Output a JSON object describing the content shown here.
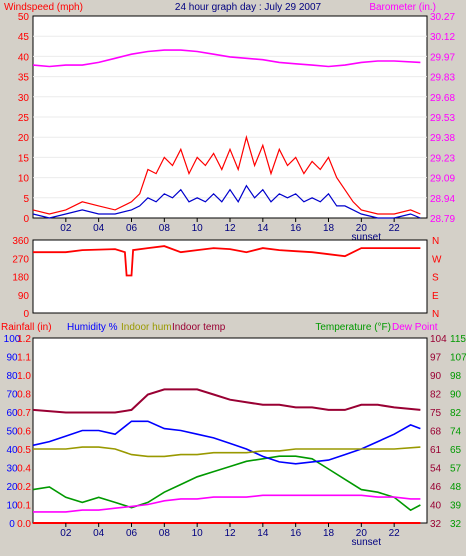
{
  "chart_data": [
    {
      "type": "line",
      "title": "24 hour graph day : July 29 2007",
      "ylabel_left": "Windspeed (mph)",
      "ylabel_right": "Barometer (in.)",
      "ylim_left": [
        0,
        50
      ],
      "left_ticks": [
        "0",
        "5",
        "10",
        "15",
        "20",
        "25",
        "30",
        "35",
        "40",
        "45",
        "50"
      ],
      "right_ticks": [
        "28.79",
        "28.94",
        "29.09",
        "29.23",
        "29.38",
        "29.53",
        "29.68",
        "29.83",
        "29.97",
        "30.12",
        "30.27"
      ],
      "x_ticks": [
        "02",
        "04",
        "06",
        "08",
        "10",
        "12",
        "14",
        "16",
        "18",
        "20",
        "22"
      ],
      "annotation": "sunset",
      "colors": {
        "wind_gust": "#ff0000",
        "wind_avg": "#0000cc",
        "barometer": "#ff00ff",
        "left_axis": "#ff0000",
        "right_axis": "#ff00ff"
      },
      "series": [
        {
          "key": "barometer",
          "x": [
            0,
            1,
            2,
            3,
            4,
            5,
            6,
            7,
            8,
            9,
            10,
            11,
            12,
            13,
            14,
            15,
            16,
            17,
            18,
            19,
            20,
            21,
            22,
            23.6
          ],
          "values": [
            29.91,
            29.9,
            29.91,
            29.91,
            29.93,
            29.96,
            29.99,
            30.01,
            30.02,
            30.02,
            30.01,
            29.99,
            29.97,
            29.96,
            29.95,
            29.93,
            29.92,
            29.91,
            29.9,
            29.91,
            29.93,
            29.94,
            29.94,
            29.93
          ]
        },
        {
          "key": "wind_gust",
          "x": [
            0,
            1,
            2,
            3,
            4,
            5,
            6,
            6.5,
            7,
            7.5,
            8,
            8.5,
            9,
            9.5,
            10,
            10.5,
            11,
            11.5,
            12,
            12.5,
            13,
            13.5,
            14,
            14.5,
            15,
            15.5,
            16,
            16.5,
            17,
            17.5,
            18,
            18.5,
            19,
            19.5,
            20,
            21,
            22,
            23,
            23.6
          ],
          "values": [
            2,
            1,
            2,
            4,
            3,
            2,
            4,
            6,
            12,
            11,
            15,
            13,
            17,
            11,
            15,
            13,
            16,
            12,
            17,
            12,
            20,
            13,
            18,
            11,
            17,
            13,
            15,
            11,
            14,
            12,
            15,
            10,
            7,
            4,
            2,
            1,
            1,
            2,
            1
          ]
        },
        {
          "key": "wind_avg",
          "x": [
            0,
            1,
            2,
            3,
            4,
            5,
            6,
            6.5,
            7,
            7.5,
            8,
            8.5,
            9,
            9.5,
            10,
            10.5,
            11,
            11.5,
            12,
            12.5,
            13,
            13.5,
            14,
            14.5,
            15,
            15.5,
            16,
            16.5,
            17,
            17.5,
            18,
            18.5,
            19,
            19.5,
            20,
            21,
            22,
            23,
            23.6
          ],
          "values": [
            1,
            0,
            1,
            2,
            1,
            1,
            2,
            3,
            5,
            4,
            6,
            5,
            7,
            4,
            5,
            4,
            6,
            4,
            7,
            4,
            8,
            5,
            7,
            4,
            6,
            5,
            6,
            4,
            5,
            4,
            6,
            3,
            3,
            2,
            1,
            0,
            0,
            1,
            0
          ]
        }
      ]
    },
    {
      "type": "line",
      "ylim": [
        0,
        360
      ],
      "left_ticks": [
        "0",
        "90",
        "180",
        "270",
        "360"
      ],
      "right_ticks": [
        "N",
        "E",
        "S",
        "W",
        "N"
      ],
      "x_ticks": [
        "02",
        "04",
        "06",
        "08",
        "10",
        "12",
        "14",
        "16",
        "18",
        "20",
        "22"
      ],
      "colors": {
        "direction": "#ff0000"
      },
      "series": [
        {
          "key": "wind_direction",
          "x": [
            0,
            2,
            3,
            5,
            5.6,
            5.7,
            6,
            6.1,
            7,
            8,
            9,
            10,
            11,
            12,
            13,
            14,
            15,
            16,
            17,
            18,
            19,
            20,
            21,
            22,
            23.6
          ],
          "values": [
            300,
            300,
            310,
            315,
            300,
            185,
            185,
            310,
            320,
            330,
            300,
            310,
            320,
            315,
            300,
            320,
            310,
            305,
            300,
            290,
            280,
            320,
            320,
            320,
            320
          ]
        }
      ]
    },
    {
      "type": "line",
      "ylabel_rain": "Rainfall (in)",
      "ylabel_humidity": "Humidity %",
      "ylabel_indoor_hum": "Indoor hum",
      "ylabel_indoor_temp": "Indoor temp",
      "ylabel_temperature": "Temperature (°F)",
      "ylabel_dewpoint": "Dew Point",
      "ylim_humidity": [
        0,
        100
      ],
      "humidity_ticks": [
        "0",
        "10",
        "20",
        "30",
        "40",
        "50",
        "60",
        "70",
        "80",
        "90",
        "100"
      ],
      "rain_ticks": [
        "0.0",
        "0.1",
        "0.2",
        "0.4",
        "0.5",
        "0.6",
        "0.7",
        "0.8",
        "1.0",
        "1.1",
        "1.2"
      ],
      "temp_ticks_a": [
        "32",
        "40",
        "46",
        "54",
        "61",
        "68",
        "75",
        "82",
        "90",
        "97",
        "104"
      ],
      "temp_ticks_b": [
        "32",
        "39",
        "48",
        "57",
        "65",
        "74",
        "82",
        "90",
        "98",
        "107",
        "115"
      ],
      "x_ticks": [
        "02",
        "04",
        "06",
        "08",
        "10",
        "12",
        "14",
        "16",
        "18",
        "20",
        "22"
      ],
      "annotation": "sunset",
      "colors": {
        "rain": "#ff0000",
        "humidity": "#0000ff",
        "indoor_hum": "#999900",
        "indoor_temp": "#990033",
        "temperature": "#009900",
        "dewpoint": "#ff00ff"
      },
      "series": [
        {
          "key": "indoor_temp",
          "x": [
            0,
            2,
            4,
            5,
            6,
            7,
            8,
            9,
            10,
            11,
            12,
            13,
            14,
            15,
            16,
            17,
            18,
            19,
            20,
            21,
            22,
            23.6
          ],
          "values": [
            76,
            75,
            75,
            75,
            76,
            82,
            84,
            84,
            84,
            82,
            80,
            79,
            78,
            78,
            77,
            77,
            76,
            76,
            78,
            78,
            77,
            76
          ]
        },
        {
          "key": "temperature",
          "x": [
            0,
            1,
            2,
            3,
            4,
            5,
            6,
            7,
            8,
            9,
            10,
            11,
            12,
            13,
            14,
            15,
            16,
            17,
            18,
            19,
            20,
            21,
            22,
            23,
            23.6
          ],
          "values": [
            45,
            46,
            42,
            40,
            42,
            40,
            38,
            40,
            44,
            47,
            50,
            52,
            54,
            56,
            57,
            58,
            58,
            57,
            53,
            49,
            45,
            44,
            42,
            37,
            39
          ]
        },
        {
          "key": "humidity",
          "x": [
            0,
            1,
            2,
            3,
            4,
            5,
            6,
            7,
            8,
            9,
            10,
            11,
            12,
            13,
            14,
            15,
            16,
            17,
            18,
            19,
            20,
            21,
            22,
            23,
            23.6
          ],
          "values": [
            42,
            44,
            47,
            50,
            50,
            48,
            55,
            55,
            51,
            50,
            48,
            46,
            43,
            40,
            36,
            33,
            32,
            33,
            34,
            37,
            40,
            44,
            48,
            53,
            51
          ]
        },
        {
          "key": "indoor_hum",
          "x": [
            0,
            1,
            2,
            3,
            4,
            5,
            6,
            7,
            8,
            9,
            10,
            11,
            12,
            13,
            14,
            15,
            16,
            17,
            18,
            19,
            20,
            21,
            22,
            23.6
          ],
          "values": [
            40,
            40,
            40,
            41,
            41,
            40,
            37,
            36,
            36,
            37,
            37,
            38,
            38,
            38,
            39,
            39,
            40,
            40,
            40,
            40,
            40,
            40,
            40,
            41
          ]
        },
        {
          "key": "dewpoint",
          "x": [
            0,
            1,
            2,
            3,
            4,
            5,
            6,
            7,
            8,
            9,
            10,
            11,
            12,
            13,
            14,
            15,
            16,
            17,
            18,
            19,
            20,
            21,
            22,
            23,
            23.6
          ],
          "values": [
            6,
            6,
            6,
            7,
            7,
            8,
            9,
            10,
            12,
            13,
            13,
            14,
            14,
            14,
            15,
            15,
            15,
            15,
            15,
            15,
            15,
            14,
            14,
            13,
            13
          ]
        },
        {
          "key": "rain",
          "x": [
            0,
            23.6
          ],
          "values": [
            0,
            0
          ]
        }
      ]
    }
  ]
}
